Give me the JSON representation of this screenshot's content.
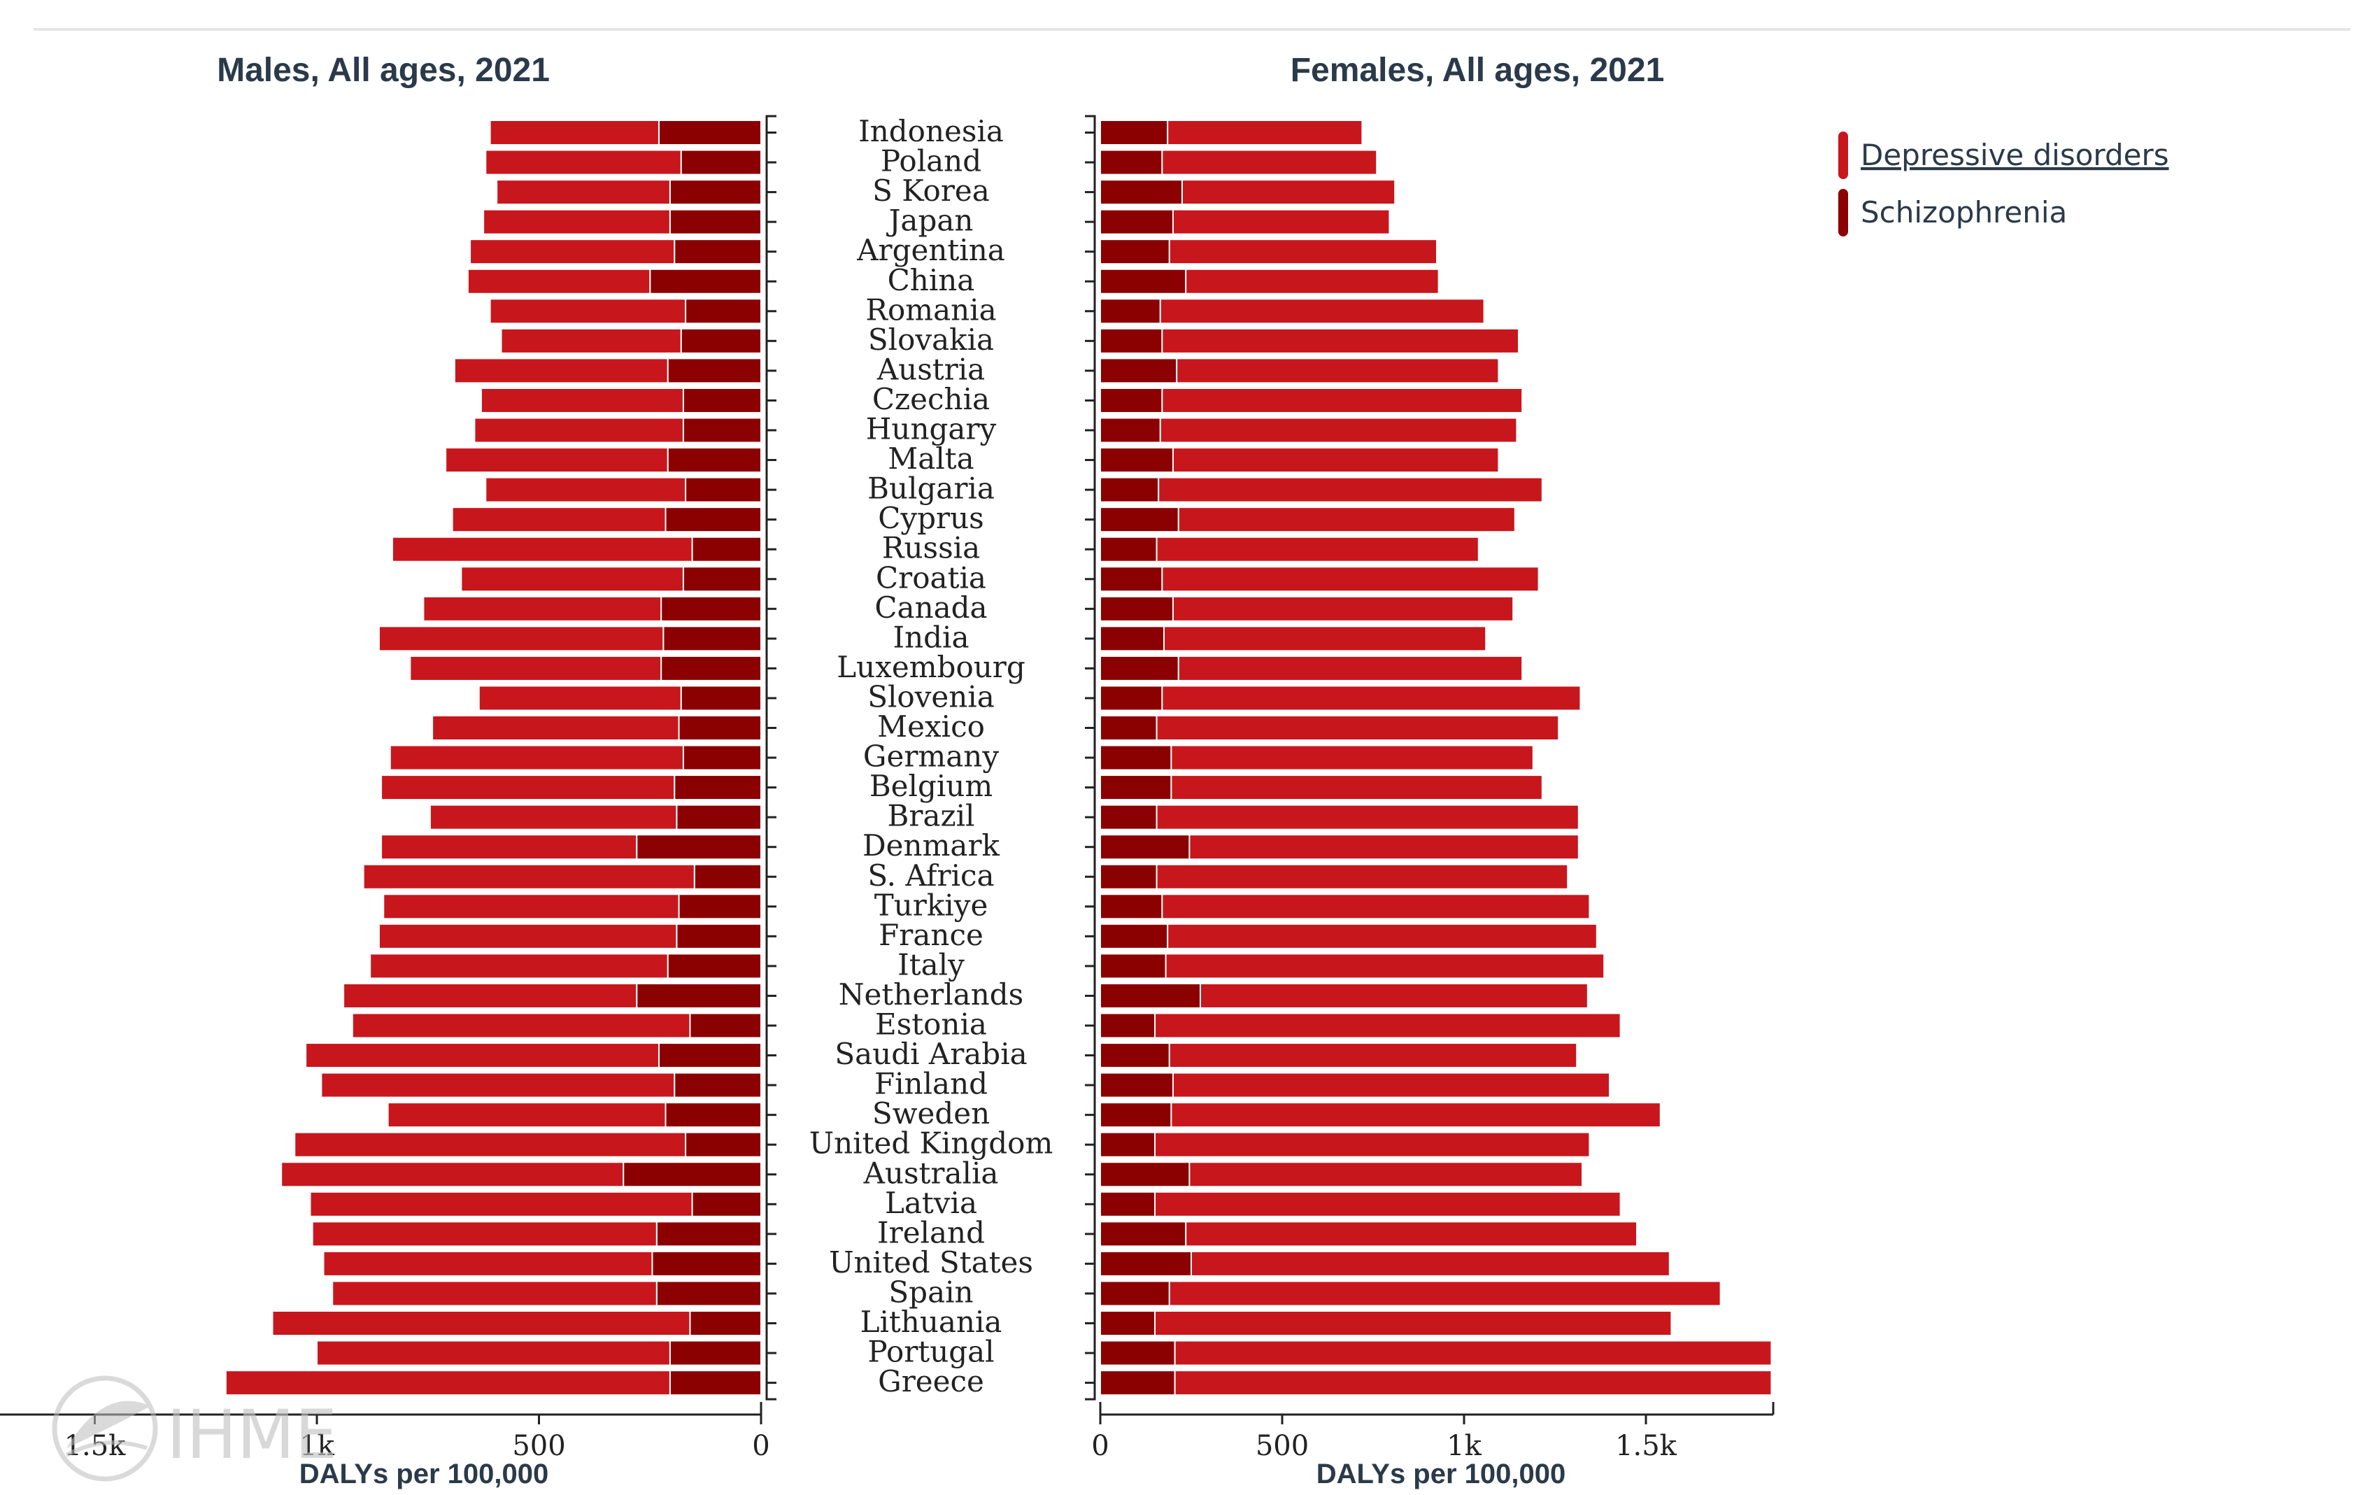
{
  "chart_data": {
    "type": "bar",
    "layout": "back-to-back horizontal stacked bar",
    "categories": [
      "Indonesia",
      "Poland",
      "S Korea",
      "Japan",
      "Argentina",
      "China",
      "Romania",
      "Slovakia",
      "Austria",
      "Czechia",
      "Hungary",
      "Malta",
      "Bulgaria",
      "Cyprus",
      "Russia",
      "Croatia",
      "Canada",
      "India",
      "Luxembourg",
      "Slovenia",
      "Mexico",
      "Germany",
      "Belgium",
      "Brazil",
      "Denmark",
      "S. Africa",
      "Turkiye",
      "France",
      "Italy",
      "Netherlands",
      "Estonia",
      "Saudi Arabia",
      "Finland",
      "Sweden",
      "United Kingdom",
      "Australia",
      "Latvia",
      "Ireland",
      "United States",
      "Spain",
      "Lithuania",
      "Portugal",
      "Greece"
    ],
    "panels": [
      {
        "id": "males",
        "title": "Males, All ages, 2021",
        "xlabel": "DALYs per 100,000",
        "xlim": [
          0,
          1850
        ],
        "reversed": true,
        "ticks": [
          0,
          500,
          1000,
          1500
        ],
        "tick_labels": [
          "0",
          "500",
          "1k",
          "1.5k"
        ],
        "series": [
          {
            "name": "Schizophrenia",
            "values": [
              230,
              180,
              205,
              205,
              195,
              250,
              170,
              180,
              210,
              175,
              175,
              210,
              170,
              215,
              155,
              175,
              225,
              220,
              225,
              180,
              185,
              175,
              195,
              190,
              280,
              150,
              185,
              190,
              210,
              280,
              160,
              230,
              195,
              215,
              170,
              310,
              155,
              235,
              245,
              235,
              160,
              205,
              205
            ]
          },
          {
            "name": "Depressive disorders",
            "values": [
              380,
              440,
              390,
              420,
              460,
              410,
              440,
              405,
              480,
              455,
              470,
              500,
              450,
              480,
              675,
              500,
              535,
              640,
              565,
              455,
              555,
              660,
              660,
              555,
              575,
              745,
              665,
              670,
              670,
              660,
              760,
              795,
              795,
              625,
              880,
              770,
              860,
              775,
              740,
              730,
              940,
              795,
              1000
            ]
          }
        ]
      },
      {
        "id": "females",
        "title": "Females, All ages, 2021",
        "xlabel": "DALYs per 100,000",
        "xlim": [
          0,
          1850
        ],
        "reversed": false,
        "ticks": [
          0,
          500,
          1000,
          1500
        ],
        "tick_labels": [
          "0",
          "500",
          "1k",
          "1.5k"
        ],
        "series": [
          {
            "name": "Schizophrenia",
            "values": [
              185,
              170,
              225,
              200,
              190,
              235,
              165,
              170,
              210,
              170,
              165,
              200,
              160,
              215,
              155,
              170,
              200,
              175,
              215,
              170,
              155,
              195,
              195,
              155,
              245,
              155,
              170,
              185,
              180,
              275,
              150,
              190,
              200,
              195,
              150,
              245,
              150,
              235,
              250,
              190,
              150,
              205,
              205
            ]
          },
          {
            "name": "Depressive disorders",
            "values": [
              535,
              590,
              585,
              595,
              735,
              695,
              890,
              980,
              885,
              990,
              980,
              895,
              1055,
              925,
              885,
              1035,
              935,
              885,
              945,
              1150,
              1105,
              995,
              1020,
              1160,
              1070,
              1130,
              1175,
              1180,
              1205,
              1065,
              1280,
              1120,
              1200,
              1345,
              1195,
              1080,
              1280,
              1240,
              1315,
              1515,
              1420,
              1640,
              1640
            ]
          }
        ]
      }
    ],
    "legend": {
      "position": "top-right",
      "entries": [
        {
          "name": "Depressive disorders",
          "color": "#c8161d"
        },
        {
          "name": "Schizophrenia",
          "color": "#8b0000"
        }
      ]
    },
    "colors": {
      "Depressive disorders": "#c8161d",
      "Schizophrenia": "#8b0000"
    }
  },
  "logo": {
    "text": "IHME"
  }
}
